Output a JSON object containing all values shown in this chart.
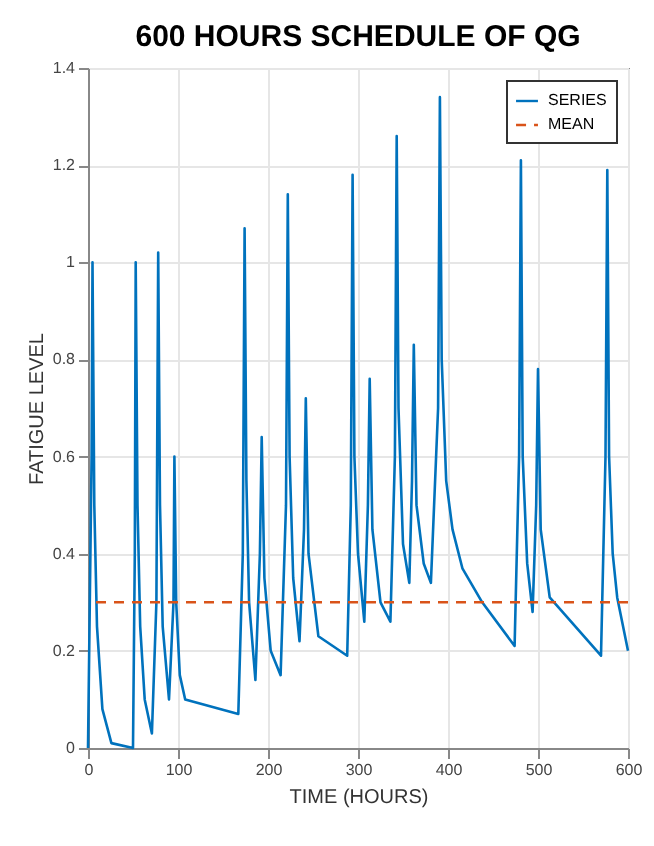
{
  "chart_data": {
    "type": "line",
    "title": "600 HOURS SCHEDULE OF QG",
    "xlabel": "TIME (HOURS)",
    "ylabel": "FATIGUE LEVEL",
    "x": [
      0,
      4,
      5,
      7,
      10,
      16,
      26,
      50,
      52,
      53,
      55,
      58,
      63,
      71,
      76,
      78,
      80,
      83,
      90,
      95,
      96,
      98,
      102,
      108,
      167,
      172,
      174,
      176,
      179,
      186,
      191,
      193,
      196,
      203,
      214,
      220,
      222,
      224,
      228,
      235,
      240,
      242,
      245,
      256,
      288,
      292,
      294,
      296,
      300,
      307,
      311,
      313,
      316,
      325,
      336,
      341,
      343,
      345,
      350,
      357,
      360,
      362,
      365,
      373,
      381,
      389,
      391,
      393,
      398,
      405,
      416,
      438,
      474,
      479,
      481,
      483,
      488,
      494,
      498,
      500,
      503,
      513,
      570,
      575,
      577,
      579,
      583,
      588,
      600
    ],
    "series": [
      {
        "name": "SERIES",
        "color": "#0072bd",
        "values": [
          0,
          0.6,
          1.0,
          0.5,
          0.25,
          0.08,
          0.01,
          0,
          0.4,
          1.0,
          0.5,
          0.25,
          0.1,
          0.03,
          0.3,
          1.02,
          0.5,
          0.25,
          0.1,
          0.3,
          0.6,
          0.3,
          0.15,
          0.1,
          0.07,
          0.4,
          1.07,
          0.55,
          0.3,
          0.14,
          0.4,
          0.64,
          0.35,
          0.2,
          0.15,
          0.5,
          1.14,
          0.6,
          0.35,
          0.22,
          0.45,
          0.72,
          0.4,
          0.23,
          0.19,
          0.5,
          1.18,
          0.6,
          0.4,
          0.26,
          0.5,
          0.76,
          0.45,
          0.3,
          0.26,
          0.6,
          1.26,
          0.7,
          0.42,
          0.34,
          0.55,
          0.83,
          0.5,
          0.38,
          0.34,
          0.7,
          1.34,
          0.8,
          0.55,
          0.45,
          0.37,
          0.3,
          0.21,
          0.6,
          1.21,
          0.6,
          0.38,
          0.28,
          0.5,
          0.78,
          0.45,
          0.31,
          0.19,
          0.6,
          1.19,
          0.6,
          0.4,
          0.31,
          0.2
        ]
      }
    ],
    "ref_lines": [
      {
        "axis": "y",
        "value": 0.3,
        "label": "MEAN",
        "color": "#d95319",
        "line_style": "dashed"
      }
    ],
    "xlim": [
      0,
      600
    ],
    "xticks": [
      0,
      100,
      200,
      300,
      400,
      500,
      600
    ],
    "ylim": [
      0,
      1.4
    ],
    "yticks": [
      0,
      0.2,
      0.4,
      0.6,
      0.8,
      1,
      1.2,
      1.4
    ],
    "grid": true,
    "legend": "top right"
  }
}
